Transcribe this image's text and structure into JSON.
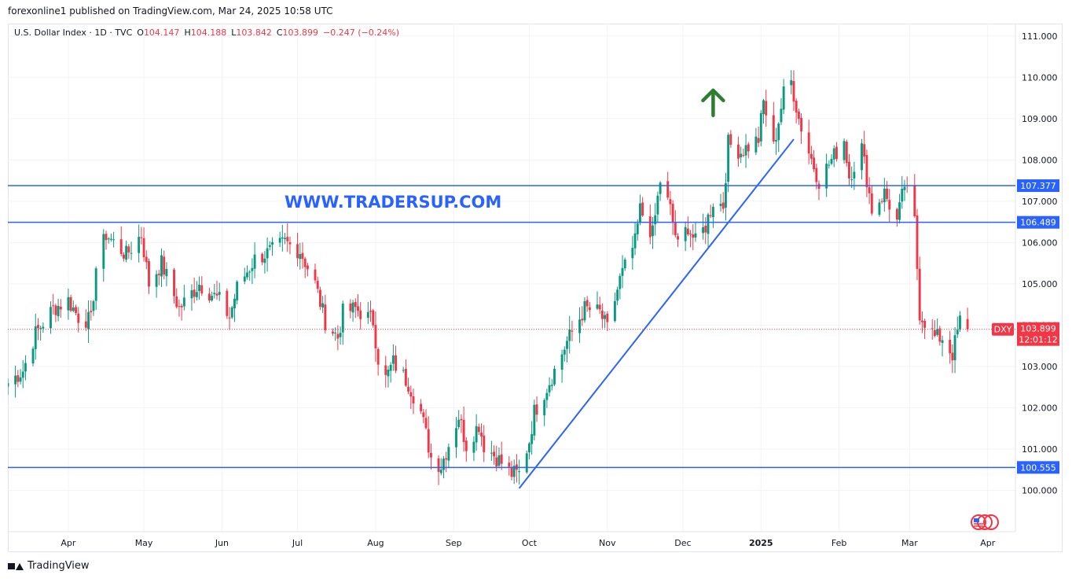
{
  "header": {
    "publish_line": "forexonline1 published on TradingView.com, Mar 24, 2025 10:58 UTC"
  },
  "legend": {
    "symbol": "U.S. Dollar Index · 1D · TVC",
    "open_label": "O",
    "open_value": "104.147",
    "high_label": "H",
    "high_value": "104.188",
    "low_label": "L",
    "low_value": "103.842",
    "close_label": "C",
    "close_value": "103.899",
    "change": "−0.247 (−0.24%)"
  },
  "footer": {
    "brand": "TradingView"
  },
  "colors": {
    "up": "#089981",
    "down": "#f23645",
    "line": "#2962ff",
    "arrow": "#2e7d32",
    "text": "#131722"
  },
  "chart_data": {
    "type": "candlestick",
    "symbol": "DXY",
    "y_ticks": [
      "111.000",
      "110.000",
      "109.000",
      "108.000",
      "107.000",
      "106.000",
      "105.000",
      "104.000",
      "103.000",
      "102.000",
      "101.000",
      "100.000"
    ],
    "ylim": [
      99.0,
      111.3
    ],
    "x_ticks": [
      {
        "label": "Apr",
        "date": "2024-04-01"
      },
      {
        "label": "May",
        "date": "2024-05-01"
      },
      {
        "label": "Jun",
        "date": "2024-06-01"
      },
      {
        "label": "Jul",
        "date": "2024-07-01"
      },
      {
        "label": "Aug",
        "date": "2024-08-01"
      },
      {
        "label": "Sep",
        "date": "2024-09-01"
      },
      {
        "label": "Oct",
        "date": "2024-10-01"
      },
      {
        "label": "Nov",
        "date": "2024-11-01"
      },
      {
        "label": "Dec",
        "date": "2024-12-01"
      },
      {
        "label": "2025",
        "date": "2025-01-01",
        "bold": true
      },
      {
        "label": "Feb",
        "date": "2025-02-01"
      },
      {
        "label": "Mar",
        "date": "2025-03-01"
      },
      {
        "label": "Apr",
        "date": "2025-04-01"
      }
    ],
    "xlim": [
      "2024-03-08",
      "2025-04-12"
    ],
    "horizontal_levels": [
      {
        "value": 107.377,
        "label": "107.377"
      },
      {
        "value": 106.489,
        "label": "106.489"
      },
      {
        "value": 100.555,
        "label": "100.555"
      }
    ],
    "trendline": {
      "start": {
        "date": "2024-09-27",
        "value": 100.05
      },
      "end": {
        "date": "2025-01-14",
        "value": 108.5
      }
    },
    "last_price": {
      "symbol": "DXY",
      "value": 103.899,
      "label": "103.899",
      "countdown": "12:01:12"
    },
    "watermark": "WWW.TRADERSUP.COM",
    "arrow_annotation": {
      "direction": "up",
      "date": "2024-12-13",
      "value": 109.4
    },
    "anchors": [
      [
        "2024-03-08",
        102.6
      ],
      [
        "2024-03-14",
        102.9
      ],
      [
        "2024-03-19",
        103.8
      ],
      [
        "2024-03-26",
        104.4
      ],
      [
        "2024-04-01",
        104.6
      ],
      [
        "2024-04-05",
        104.2
      ],
      [
        "2024-04-10",
        104.1
      ],
      [
        "2024-04-12",
        105.4
      ],
      [
        "2024-04-16",
        106.2
      ],
      [
        "2024-04-19",
        106.0
      ],
      [
        "2024-04-24",
        105.7
      ],
      [
        "2024-04-30",
        106.2
      ],
      [
        "2024-05-03",
        105.0
      ],
      [
        "2024-05-08",
        105.5
      ],
      [
        "2024-05-15",
        104.4
      ],
      [
        "2024-05-23",
        105.0
      ],
      [
        "2024-05-31",
        104.6
      ],
      [
        "2024-06-04",
        104.2
      ],
      [
        "2024-06-07",
        104.9
      ],
      [
        "2024-06-14",
        105.6
      ],
      [
        "2024-06-21",
        105.8
      ],
      [
        "2024-06-26",
        106.0
      ],
      [
        "2024-07-02",
        105.8
      ],
      [
        "2024-07-08",
        105.0
      ],
      [
        "2024-07-12",
        104.1
      ],
      [
        "2024-07-17",
        103.7
      ],
      [
        "2024-07-19",
        104.3
      ],
      [
        "2024-07-24",
        104.4
      ],
      [
        "2024-07-31",
        104.1
      ],
      [
        "2024-08-02",
        103.2
      ],
      [
        "2024-08-05",
        102.7
      ],
      [
        "2024-08-08",
        103.1
      ],
      [
        "2024-08-14",
        102.6
      ],
      [
        "2024-08-19",
        101.9
      ],
      [
        "2024-08-23",
        100.8
      ],
      [
        "2024-08-27",
        100.6
      ],
      [
        "2024-09-03",
        101.8
      ],
      [
        "2024-09-06",
        101.1
      ],
      [
        "2024-09-11",
        101.6
      ],
      [
        "2024-09-13",
        101.1
      ],
      [
        "2024-09-18",
        100.8
      ],
      [
        "2024-09-24",
        100.4
      ],
      [
        "2024-09-27",
        100.4
      ],
      [
        "2024-10-01",
        101.2
      ],
      [
        "2024-10-03",
        101.9
      ],
      [
        "2024-10-08",
        102.5
      ],
      [
        "2024-10-11",
        102.9
      ],
      [
        "2024-10-16",
        103.6
      ],
      [
        "2024-10-23",
        104.4
      ],
      [
        "2024-10-29",
        104.3
      ],
      [
        "2024-11-01",
        103.9
      ],
      [
        "2024-11-06",
        105.1
      ],
      [
        "2024-11-12",
        106.0
      ],
      [
        "2024-11-14",
        106.8
      ],
      [
        "2024-11-19",
        106.2
      ],
      [
        "2024-11-22",
        107.5
      ],
      [
        "2024-11-26",
        106.8
      ],
      [
        "2024-11-29",
        105.9
      ],
      [
        "2024-12-03",
        106.4
      ],
      [
        "2024-12-06",
        106.0
      ],
      [
        "2024-12-10",
        106.4
      ],
      [
        "2024-12-13",
        107.0
      ],
      [
        "2024-12-17",
        106.9
      ],
      [
        "2024-12-19",
        108.4
      ],
      [
        "2024-12-24",
        108.2
      ],
      [
        "2024-12-31",
        108.5
      ],
      [
        "2025-01-02",
        109.4
      ],
      [
        "2025-01-06",
        108.3
      ],
      [
        "2025-01-10",
        109.6
      ],
      [
        "2025-01-13",
        109.9
      ],
      [
        "2025-01-16",
        109.0
      ],
      [
        "2025-01-20",
        108.2
      ],
      [
        "2025-01-24",
        107.5
      ],
      [
        "2025-01-27",
        107.8
      ],
      [
        "2025-02-03",
        108.5
      ],
      [
        "2025-02-05",
        107.6
      ],
      [
        "2025-02-10",
        108.3
      ],
      [
        "2025-02-14",
        106.8
      ],
      [
        "2025-02-19",
        107.2
      ],
      [
        "2025-02-24",
        106.5
      ],
      [
        "2025-02-27",
        107.4
      ],
      [
        "2025-03-03",
        106.5
      ],
      [
        "2025-03-05",
        104.3
      ],
      [
        "2025-03-11",
        103.7
      ],
      [
        "2025-03-14",
        103.7
      ],
      [
        "2025-03-18",
        103.3
      ],
      [
        "2025-03-21",
        104.1
      ],
      [
        "2025-03-24",
        103.9
      ]
    ]
  }
}
